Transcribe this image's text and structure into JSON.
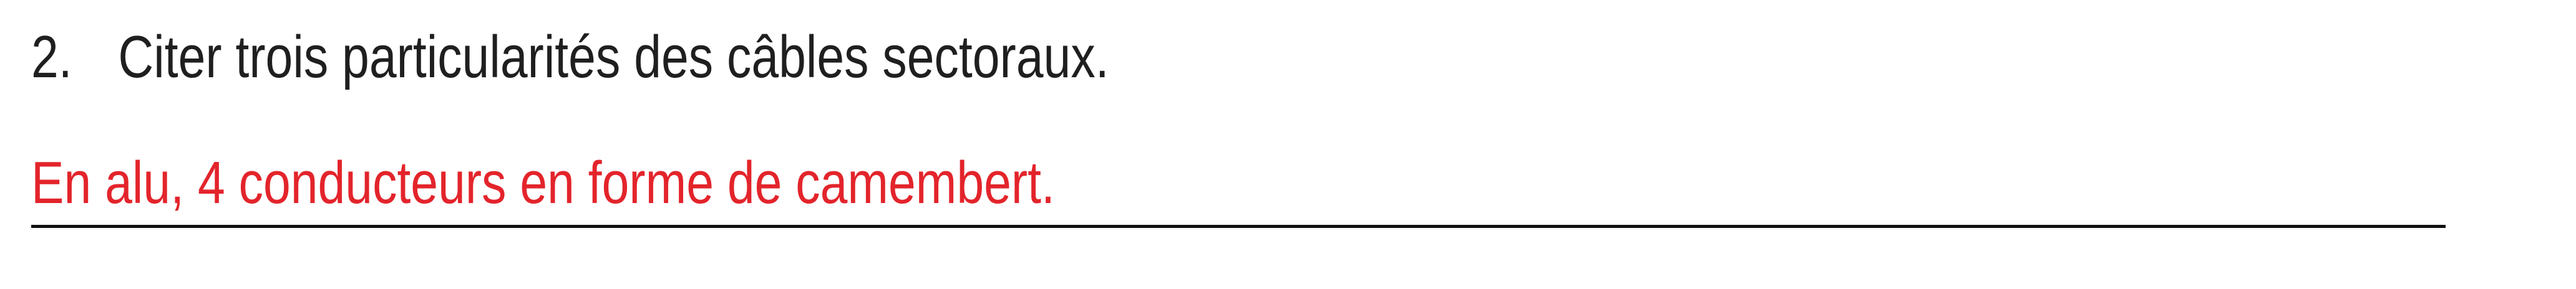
{
  "question": {
    "number": "2.",
    "text": "Citer trois particularités des câbles sectoraux."
  },
  "answer": {
    "text": "En alu, 4 conducteurs en forme de camembert.",
    "color": "#e3242b"
  },
  "colors": {
    "question_text": "#1f1f1f",
    "answer_text": "#e3242b",
    "underline": "#111111",
    "background": "#ffffff"
  }
}
